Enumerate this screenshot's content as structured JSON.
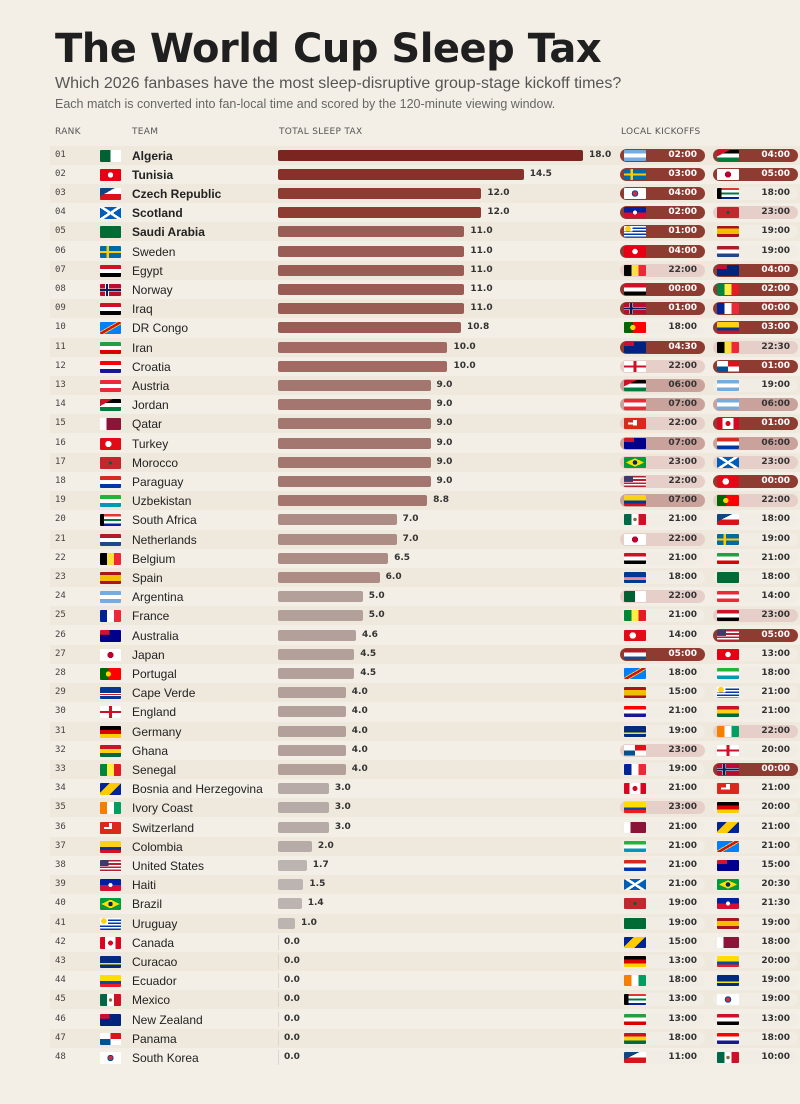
{
  "title": "The World Cup Sleep Tax",
  "subtitle": "Which 2026 fanbases have the most sleep-disruptive group-stage kickoff times?",
  "note": "Each match is converted into fan-local time and scored by the 120-minute viewing window.",
  "headers": {
    "rank": "RANK",
    "team": "TEAM",
    "tax": "TOTAL SLEEP TAX",
    "kickoffs": "LOCAL KICKOFFS"
  },
  "colors": {
    "background": "#f4efe6",
    "bar_high": "#7a2520",
    "bar_mid": "#a3766f",
    "bar_low": "#b5aeaa",
    "pill_light_text": "#ffffff",
    "pill_dark_text": "#333333"
  },
  "chart_data": {
    "type": "bar",
    "title": "The World Cup Sleep Tax",
    "xlim": [
      0,
      18
    ],
    "grid": false,
    "rows": [
      {
        "rank": "01",
        "team": "Algeria",
        "flag": "dz-flag",
        "tax": 18.0,
        "k": [
          [
            "ar-flag",
            "02:00"
          ],
          [
            "jo-flag",
            "04:00"
          ]
        ]
      },
      {
        "rank": "02",
        "team": "Tunisia",
        "flag": "tn-flag",
        "tax": 14.5,
        "k": [
          [
            "se-flag",
            "03:00"
          ],
          [
            "jp-flag",
            "05:00"
          ]
        ]
      },
      {
        "rank": "03",
        "team": "Czech Republic",
        "flag": "cz-flag",
        "tax": 12.0,
        "k": [
          [
            "kr-flag",
            "04:00"
          ],
          [
            "za-flag",
            "18:00"
          ]
        ]
      },
      {
        "rank": "04",
        "team": "Scotland",
        "flag": "sct-flag",
        "tax": 12.0,
        "k": [
          [
            "ht-flag",
            "02:00"
          ],
          [
            "ma-flag",
            "23:00"
          ]
        ]
      },
      {
        "rank": "05",
        "team": "Saudi Arabia",
        "flag": "sa-flag",
        "tax": 11.0,
        "k": [
          [
            "uy-flag",
            "01:00"
          ],
          [
            "es-flag",
            "19:00"
          ]
        ]
      },
      {
        "rank": "06",
        "team": "Sweden",
        "flag": "se-flag",
        "tax": 11.0,
        "k": [
          [
            "tn-flag",
            "04:00"
          ],
          [
            "nl-flag",
            "19:00"
          ]
        ]
      },
      {
        "rank": "07",
        "team": "Egypt",
        "flag": "eg-flag",
        "tax": 11.0,
        "k": [
          [
            "be-flag",
            "22:00"
          ],
          [
            "nz-flag",
            "04:00"
          ]
        ]
      },
      {
        "rank": "08",
        "team": "Norway",
        "flag": "no-flag",
        "tax": 11.0,
        "k": [
          [
            "iq-flag",
            "00:00"
          ],
          [
            "sn-flag",
            "02:00"
          ]
        ]
      },
      {
        "rank": "09",
        "team": "Iraq",
        "flag": "iq-flag",
        "tax": 11.0,
        "k": [
          [
            "no-flag",
            "01:00"
          ],
          [
            "fr-flag",
            "00:00"
          ]
        ]
      },
      {
        "rank": "10",
        "team": "DR Congo",
        "flag": "cd-flag",
        "tax": 10.8,
        "k": [
          [
            "pt-flag",
            "18:00"
          ],
          [
            "co-flag",
            "03:00"
          ]
        ]
      },
      {
        "rank": "11",
        "team": "Iran",
        "flag": "ir-flag",
        "tax": 10.0,
        "k": [
          [
            "nz-flag",
            "04:30"
          ],
          [
            "be-flag",
            "22:30"
          ]
        ]
      },
      {
        "rank": "12",
        "team": "Croatia",
        "flag": "hr-flag",
        "tax": 10.0,
        "k": [
          [
            "en-flag",
            "22:00"
          ],
          [
            "pa-flag",
            "01:00"
          ]
        ]
      },
      {
        "rank": "13",
        "team": "Austria",
        "flag": "at-flag",
        "tax": 9.0,
        "k": [
          [
            "jo-flag",
            "06:00"
          ],
          [
            "ar-flag",
            "19:00"
          ]
        ]
      },
      {
        "rank": "14",
        "team": "Jordan",
        "flag": "jo-flag",
        "tax": 9.0,
        "k": [
          [
            "at-flag",
            "07:00"
          ],
          [
            "ar-flag",
            "06:00"
          ]
        ]
      },
      {
        "rank": "15",
        "team": "Qatar",
        "flag": "qa-flag",
        "tax": 9.0,
        "k": [
          [
            "ch-flag",
            "22:00"
          ],
          [
            "ca-flag",
            "01:00"
          ]
        ]
      },
      {
        "rank": "16",
        "team": "Turkey",
        "flag": "tr-flag",
        "tax": 9.0,
        "k": [
          [
            "au-flag",
            "07:00"
          ],
          [
            "py-flag",
            "06:00"
          ]
        ]
      },
      {
        "rank": "17",
        "team": "Morocco",
        "flag": "ma-flag",
        "tax": 9.0,
        "k": [
          [
            "br-flag",
            "23:00"
          ],
          [
            "sct-flag",
            "23:00"
          ]
        ]
      },
      {
        "rank": "18",
        "team": "Paraguay",
        "flag": "py-flag",
        "tax": 9.0,
        "k": [
          [
            "us-flag",
            "22:00"
          ],
          [
            "tr-flag",
            "00:00"
          ]
        ]
      },
      {
        "rank": "19",
        "team": "Uzbekistan",
        "flag": "uz-flag",
        "tax": 8.8,
        "k": [
          [
            "co-flag",
            "07:00"
          ],
          [
            "pt-flag",
            "22:00"
          ]
        ]
      },
      {
        "rank": "20",
        "team": "South Africa",
        "flag": "za-flag",
        "tax": 7.0,
        "k": [
          [
            "mx-flag",
            "21:00"
          ],
          [
            "cz-flag",
            "18:00"
          ]
        ]
      },
      {
        "rank": "21",
        "team": "Netherlands",
        "flag": "nl-flag",
        "tax": 7.0,
        "k": [
          [
            "jp-flag",
            "22:00"
          ],
          [
            "se-flag",
            "19:00"
          ]
        ]
      },
      {
        "rank": "22",
        "team": "Belgium",
        "flag": "be-flag",
        "tax": 6.5,
        "k": [
          [
            "eg-flag",
            "21:00"
          ],
          [
            "ir-flag",
            "21:00"
          ]
        ]
      },
      {
        "rank": "23",
        "team": "Spain",
        "flag": "es-flag",
        "tax": 6.0,
        "k": [
          [
            "cv-flag",
            "18:00"
          ],
          [
            "sa-flag",
            "18:00"
          ]
        ]
      },
      {
        "rank": "24",
        "team": "Argentina",
        "flag": "ar-flag",
        "tax": 5.0,
        "k": [
          [
            "dz-flag",
            "22:00"
          ],
          [
            "at-flag",
            "14:00"
          ]
        ]
      },
      {
        "rank": "25",
        "team": "France",
        "flag": "fr-flag",
        "tax": 5.0,
        "k": [
          [
            "sn-flag",
            "21:00"
          ],
          [
            "iq-flag",
            "23:00"
          ]
        ]
      },
      {
        "rank": "26",
        "team": "Australia",
        "flag": "au-flag",
        "tax": 4.6,
        "k": [
          [
            "tr-flag",
            "14:00"
          ],
          [
            "us-flag",
            "05:00"
          ]
        ]
      },
      {
        "rank": "27",
        "team": "Japan",
        "flag": "jp-flag",
        "tax": 4.5,
        "k": [
          [
            "nl-flag",
            "05:00"
          ],
          [
            "tn-flag",
            "13:00"
          ]
        ]
      },
      {
        "rank": "28",
        "team": "Portugal",
        "flag": "pt-flag",
        "tax": 4.5,
        "k": [
          [
            "cd-flag",
            "18:00"
          ],
          [
            "uz-flag",
            "18:00"
          ]
        ]
      },
      {
        "rank": "29",
        "team": "Cape Verde",
        "flag": "cv-flag",
        "tax": 4.0,
        "k": [
          [
            "es-flag",
            "15:00"
          ],
          [
            "uy-flag",
            "21:00"
          ]
        ]
      },
      {
        "rank": "30",
        "team": "England",
        "flag": "en-flag",
        "tax": 4.0,
        "k": [
          [
            "hr-flag",
            "21:00"
          ],
          [
            "gh-flag",
            "21:00"
          ]
        ]
      },
      {
        "rank": "31",
        "team": "Germany",
        "flag": "de-flag",
        "tax": 4.0,
        "k": [
          [
            "cw-flag",
            "19:00"
          ],
          [
            "ci-flag",
            "22:00"
          ]
        ]
      },
      {
        "rank": "32",
        "team": "Ghana",
        "flag": "gh-flag",
        "tax": 4.0,
        "k": [
          [
            "pa-flag",
            "23:00"
          ],
          [
            "en-flag",
            "20:00"
          ]
        ]
      },
      {
        "rank": "33",
        "team": "Senegal",
        "flag": "sn-flag",
        "tax": 4.0,
        "k": [
          [
            "fr-flag",
            "19:00"
          ],
          [
            "no-flag",
            "00:00"
          ]
        ]
      },
      {
        "rank": "34",
        "team": "Bosnia and Herzegovina",
        "flag": "ba-flag",
        "tax": 3.0,
        "k": [
          [
            "ca-flag",
            "21:00"
          ],
          [
            "ch-flag",
            "21:00"
          ]
        ]
      },
      {
        "rank": "35",
        "team": "Ivory Coast",
        "flag": "ci-flag",
        "tax": 3.0,
        "k": [
          [
            "ec-flag",
            "23:00"
          ],
          [
            "de-flag",
            "20:00"
          ]
        ]
      },
      {
        "rank": "36",
        "team": "Switzerland",
        "flag": "ch-flag",
        "tax": 3.0,
        "k": [
          [
            "qa-flag",
            "21:00"
          ],
          [
            "ba-flag",
            "21:00"
          ]
        ]
      },
      {
        "rank": "37",
        "team": "Colombia",
        "flag": "co-flag",
        "tax": 2.0,
        "k": [
          [
            "uz-flag",
            "21:00"
          ],
          [
            "cd-flag",
            "21:00"
          ]
        ]
      },
      {
        "rank": "38",
        "team": "United States",
        "flag": "us-flag",
        "tax": 1.7,
        "k": [
          [
            "py-flag",
            "21:00"
          ],
          [
            "au-flag",
            "15:00"
          ]
        ]
      },
      {
        "rank": "39",
        "team": "Haiti",
        "flag": "ht-flag",
        "tax": 1.5,
        "k": [
          [
            "sct-flag",
            "21:00"
          ],
          [
            "br-flag",
            "20:30"
          ]
        ]
      },
      {
        "rank": "40",
        "team": "Brazil",
        "flag": "br-flag",
        "tax": 1.4,
        "k": [
          [
            "ma-flag",
            "19:00"
          ],
          [
            "ht-flag",
            "21:30"
          ]
        ]
      },
      {
        "rank": "41",
        "team": "Uruguay",
        "flag": "uy-flag",
        "tax": 1.0,
        "k": [
          [
            "sa-flag",
            "19:00"
          ],
          [
            "es-flag",
            "19:00"
          ]
        ]
      },
      {
        "rank": "42",
        "team": "Canada",
        "flag": "ca-flag",
        "tax": 0.0,
        "k": [
          [
            "ba-flag",
            "15:00"
          ],
          [
            "qa-flag",
            "18:00"
          ]
        ]
      },
      {
        "rank": "43",
        "team": "Curacao",
        "flag": "cw-flag",
        "tax": 0.0,
        "k": [
          [
            "de-flag",
            "13:00"
          ],
          [
            "ec-flag",
            "20:00"
          ]
        ]
      },
      {
        "rank": "44",
        "team": "Ecuador",
        "flag": "ec-flag",
        "tax": 0.0,
        "k": [
          [
            "ci-flag",
            "18:00"
          ],
          [
            "cw-flag",
            "19:00"
          ]
        ]
      },
      {
        "rank": "45",
        "team": "Mexico",
        "flag": "mx-flag",
        "tax": 0.0,
        "k": [
          [
            "za-flag",
            "13:00"
          ],
          [
            "kr-flag",
            "19:00"
          ]
        ]
      },
      {
        "rank": "46",
        "team": "New Zealand",
        "flag": "nz-flag",
        "tax": 0.0,
        "k": [
          [
            "ir-flag",
            "13:00"
          ],
          [
            "eg-flag",
            "13:00"
          ]
        ]
      },
      {
        "rank": "47",
        "team": "Panama",
        "flag": "pa-flag",
        "tax": 0.0,
        "k": [
          [
            "gh-flag",
            "18:00"
          ],
          [
            "hr-flag",
            "18:00"
          ]
        ]
      },
      {
        "rank": "48",
        "team": "South Korea",
        "flag": "kr-flag",
        "tax": 0.0,
        "k": [
          [
            "cz-flag",
            "11:00"
          ],
          [
            "mx-flag",
            "10:00"
          ]
        ]
      }
    ]
  }
}
